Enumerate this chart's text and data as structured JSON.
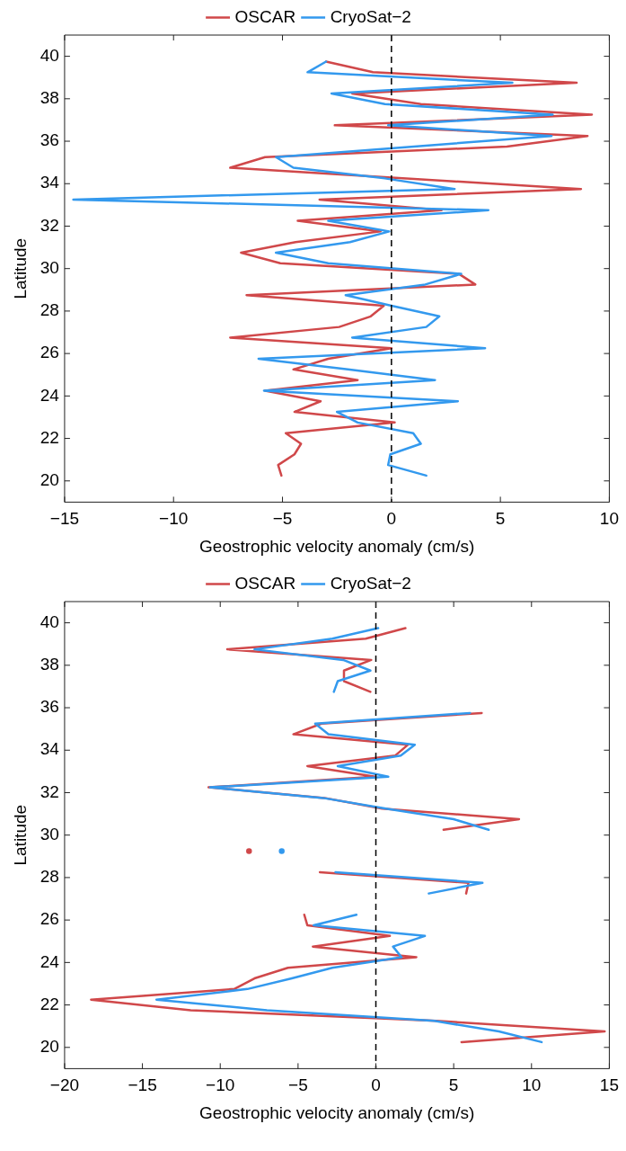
{
  "chart_data": [
    {
      "type": "line",
      "xlabel": "Geostrophic velocity anomaly (cm/s)",
      "ylabel": "Latitude",
      "legend": "top",
      "grid": false,
      "marker": "none",
      "line_style": "solid",
      "xlim": [
        -15,
        10
      ],
      "xticks": [
        -15,
        -10,
        -5,
        0,
        5,
        10
      ],
      "ylim": [
        19,
        41
      ],
      "yticks": [
        20,
        22,
        24,
        26,
        28,
        30,
        32,
        34,
        36,
        38,
        40
      ],
      "ref_lines": [
        {
          "axis": "x",
          "value": 0,
          "color": "#000000",
          "line_style": "dashed"
        }
      ],
      "series": [
        {
          "name": "OSCAR",
          "color": "#d0484a",
          "x": [
            -3.0,
            -0.85,
            8.5,
            -1.8,
            1.35,
            9.2,
            -2.6,
            9.0,
            5.3,
            -5.8,
            -7.4,
            8.7,
            -3.3,
            2.3,
            -4.3,
            -0.5,
            -4.4,
            -6.9,
            -5.1,
            3.1,
            3.85,
            -6.65,
            -0.35,
            -0.95,
            -2.4,
            -7.4,
            0,
            -2.9,
            -4.5,
            -1.55,
            -5.8,
            -3.25,
            -4.45,
            0.15,
            -4.85,
            -4.15,
            -4.45,
            -5.2,
            -5.05
          ],
          "values": [
            39.75,
            39.25,
            38.75,
            38.25,
            37.75,
            37.25,
            36.75,
            36.25,
            35.75,
            35.25,
            34.75,
            33.75,
            33.25,
            32.75,
            32.25,
            31.75,
            31.25,
            30.75,
            30.25,
            29.75,
            29.25,
            28.75,
            28.25,
            27.75,
            27.25,
            26.75,
            26.25,
            25.75,
            25.25,
            24.75,
            24.25,
            23.75,
            23.25,
            22.75,
            22.25,
            21.75,
            21.25,
            20.75,
            20.25
          ]
        },
        {
          "name": "CryoSat−2",
          "color": "#3399ee",
          "x": [
            -3.0,
            -3.85,
            5.55,
            -2.75,
            -0.3,
            7.4,
            -0.15,
            7.35,
            -5.3,
            -4.5,
            -0.3,
            2.9,
            -14.6,
            4.45,
            -2.9,
            -0.1,
            -1.9,
            -5.3,
            -2.9,
            3.2,
            1.55,
            -2.1,
            0.0,
            2.2,
            1.6,
            -1.8,
            4.3,
            -6.1,
            -2.0,
            2.0,
            -5.85,
            3.05,
            -2.5,
            -1.55,
            1.0,
            1.35,
            -0.05,
            -0.15,
            1.6
          ],
          "values": [
            39.75,
            39.25,
            38.75,
            38.25,
            37.75,
            37.25,
            36.75,
            36.25,
            35.25,
            34.75,
            34.25,
            33.75,
            33.25,
            32.75,
            32.25,
            31.75,
            31.25,
            30.75,
            30.25,
            29.75,
            29.25,
            28.75,
            28.25,
            27.75,
            27.25,
            26.75,
            26.25,
            25.75,
            25.25,
            24.75,
            24.25,
            23.75,
            23.25,
            22.75,
            22.25,
            21.75,
            21.25,
            20.75,
            20.25
          ]
        }
      ]
    },
    {
      "type": "line",
      "xlabel": "Geostrophic velocity anomaly (cm/s)",
      "ylabel": "Latitude",
      "legend": "top",
      "grid": false,
      "marker": "none",
      "line_style": "solid",
      "xlim": [
        -20,
        15
      ],
      "xticks": [
        -20,
        -15,
        -10,
        -5,
        0,
        5,
        10,
        15
      ],
      "ylim": [
        19,
        41
      ],
      "yticks": [
        20,
        22,
        24,
        26,
        28,
        30,
        32,
        34,
        36,
        38,
        40
      ],
      "ref_lines": [
        {
          "axis": "x",
          "value": 0,
          "color": "#000000",
          "line_style": "dashed"
        }
      ],
      "series": [
        {
          "name": "OSCAR",
          "color": "#d0484a",
          "x": [
            1.9,
            -0.65,
            -9.55,
            -0.3,
            -2.05,
            -2.05,
            -0.35,
            null,
            6.8,
            -3.5,
            -5.3,
            2.05,
            1.25,
            -4.4,
            -0.05,
            -10.75,
            -3.3,
            0.4,
            9.2,
            4.35,
            null,
            -8.15,
            null,
            -3.6,
            5.95,
            5.8,
            null,
            -4.6,
            -4.4,
            0.9,
            -4.05,
            2.6,
            -5.65,
            -7.8,
            -9.1,
            -18.3,
            -11.9,
            3.9,
            14.7,
            5.5
          ],
          "values": [
            39.75,
            39.25,
            38.75,
            38.25,
            37.75,
            37.25,
            36.75,
            null,
            35.75,
            35.25,
            34.75,
            34.25,
            33.75,
            33.25,
            32.75,
            32.25,
            31.75,
            31.25,
            30.75,
            30.25,
            null,
            29.25,
            null,
            28.25,
            27.75,
            27.25,
            null,
            26.25,
            25.75,
            25.25,
            24.75,
            24.25,
            23.75,
            23.25,
            22.75,
            22.25,
            21.75,
            21.25,
            20.75,
            20.25
          ]
        },
        {
          "name": "CryoSat−2",
          "color": "#3399ee",
          "x": [
            0.15,
            -2.8,
            -7.8,
            -2.1,
            -0.35,
            -2.45,
            -2.7,
            null,
            6.05,
            -3.9,
            -3.05,
            2.5,
            1.6,
            -2.45,
            0.8,
            -10.65,
            -3.4,
            0.65,
            5.0,
            7.25,
            null,
            -6.05,
            null,
            -2.6,
            6.85,
            3.4,
            null,
            -1.25,
            -4.0,
            3.15,
            1.1,
            1.65,
            -2.8,
            -5.4,
            -8.25,
            -14.1,
            -7.0,
            3.75,
            7.9,
            10.65
          ],
          "values": [
            39.75,
            39.25,
            38.75,
            38.25,
            37.75,
            37.25,
            36.75,
            null,
            35.75,
            35.25,
            34.75,
            34.25,
            33.75,
            33.25,
            32.75,
            32.25,
            31.75,
            31.25,
            30.75,
            30.25,
            null,
            29.25,
            null,
            28.25,
            27.75,
            27.25,
            null,
            26.25,
            25.75,
            25.25,
            24.75,
            24.25,
            23.75,
            23.25,
            22.75,
            22.25,
            21.75,
            21.25,
            20.75,
            20.25
          ]
        }
      ]
    }
  ]
}
